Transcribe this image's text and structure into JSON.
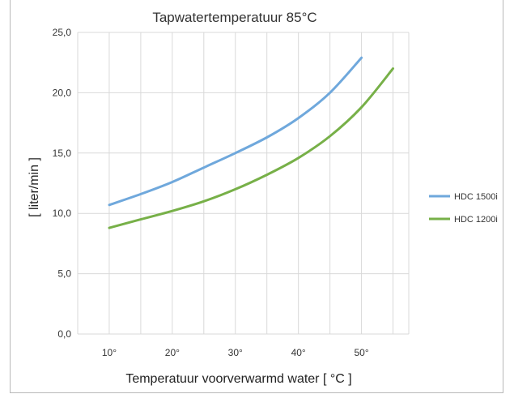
{
  "chart_data": {
    "type": "line",
    "title": "Tapwatertemperatuur 85°C",
    "xlabel": "Temperatuur voorverwarmd water [ °C ]",
    "ylabel": "[ liter/min ]",
    "xlim": [
      5,
      57.5
    ],
    "ylim": [
      0,
      25
    ],
    "x_ticks": [
      {
        "value": 10,
        "label": "10°"
      },
      {
        "value": 20,
        "label": "20°"
      },
      {
        "value": 30,
        "label": "30°"
      },
      {
        "value": 40,
        "label": "40°"
      },
      {
        "value": 50,
        "label": "50°"
      }
    ],
    "y_ticks": [
      {
        "value": 0,
        "label": "0,0"
      },
      {
        "value": 5,
        "label": "5,0"
      },
      {
        "value": 10,
        "label": "10,0"
      },
      {
        "value": 15,
        "label": "15,0"
      },
      {
        "value": 20,
        "label": "20,0"
      },
      {
        "value": 25,
        "label": "25,0"
      }
    ],
    "grid": true,
    "legend_position": "right",
    "series": [
      {
        "name": "HDC 1500i",
        "color": "#6fa8dc",
        "x": [
          10,
          15,
          20,
          25,
          30,
          35,
          40,
          45,
          50
        ],
        "y": [
          10.7,
          11.6,
          12.6,
          13.8,
          15.0,
          16.3,
          17.9,
          20.0,
          22.9
        ]
      },
      {
        "name": "HDC 1200i",
        "color": "#77b048",
        "x": [
          10,
          15,
          20,
          25,
          30,
          35,
          40,
          45,
          50,
          55
        ],
        "y": [
          8.8,
          9.5,
          10.2,
          11.0,
          12.0,
          13.2,
          14.6,
          16.4,
          18.8,
          22.0
        ]
      }
    ]
  }
}
